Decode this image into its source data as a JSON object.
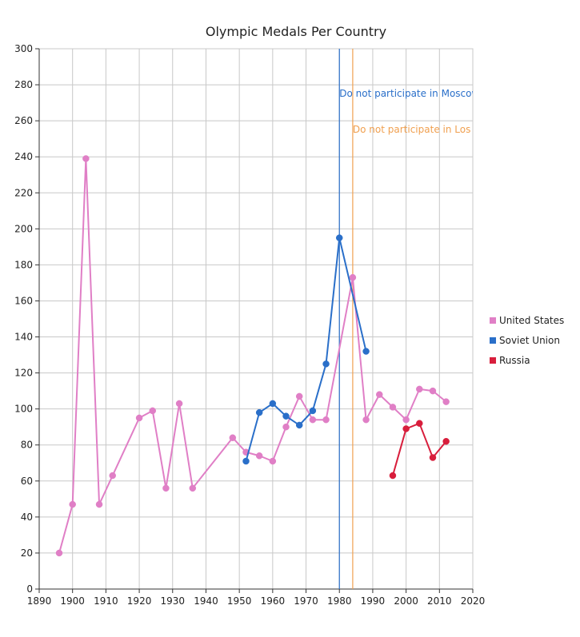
{
  "chart_data": {
    "type": "line",
    "title": "Olympic Medals Per Country",
    "xlabel": "",
    "ylabel": "",
    "xlim": [
      1890,
      2020
    ],
    "ylim": [
      0,
      300
    ],
    "x_ticks": [
      1890,
      1900,
      1910,
      1920,
      1930,
      1940,
      1950,
      1960,
      1970,
      1980,
      1990,
      2000,
      2010,
      2020
    ],
    "y_ticks": [
      0,
      20,
      40,
      60,
      80,
      100,
      120,
      140,
      160,
      180,
      200,
      220,
      240,
      260,
      280,
      300
    ],
    "grid": true,
    "legend_position": "right",
    "series": [
      {
        "name": "United States",
        "color": "#e07fc6",
        "points": [
          [
            1896,
            20
          ],
          [
            1900,
            47
          ],
          [
            1904,
            239
          ],
          [
            1908,
            47
          ],
          [
            1912,
            63
          ],
          [
            1920,
            95
          ],
          [
            1924,
            99
          ],
          [
            1928,
            56
          ],
          [
            1932,
            103
          ],
          [
            1936,
            56
          ],
          [
            1948,
            84
          ],
          [
            1952,
            76
          ],
          [
            1956,
            74
          ],
          [
            1960,
            71
          ],
          [
            1964,
            90
          ],
          [
            1968,
            107
          ],
          [
            1972,
            94
          ],
          [
            1976,
            94
          ],
          [
            1984,
            173
          ],
          [
            1988,
            94
          ],
          [
            1992,
            108
          ],
          [
            1996,
            101
          ],
          [
            2000,
            94
          ],
          [
            2004,
            111
          ],
          [
            2008,
            110
          ],
          [
            2012,
            104
          ]
        ]
      },
      {
        "name": "Soviet Union",
        "color": "#2a6fc9",
        "points": [
          [
            1952,
            71
          ],
          [
            1956,
            98
          ],
          [
            1960,
            103
          ],
          [
            1964,
            96
          ],
          [
            1968,
            91
          ],
          [
            1972,
            99
          ],
          [
            1976,
            125
          ],
          [
            1980,
            195
          ],
          [
            1988,
            132
          ]
        ]
      },
      {
        "name": "Russia",
        "color": "#d81e3c",
        "points": [
          [
            1996,
            63
          ],
          [
            2000,
            89
          ],
          [
            2004,
            92
          ],
          [
            2008,
            73
          ],
          [
            2012,
            82
          ]
        ]
      }
    ],
    "annotations": [
      {
        "x": 1980,
        "text": "Do not participate in Moscow",
        "color": "#2a6fc9"
      },
      {
        "x": 1984,
        "text": "Do not participate in Los Angeles",
        "color": "#f0a050"
      }
    ]
  }
}
